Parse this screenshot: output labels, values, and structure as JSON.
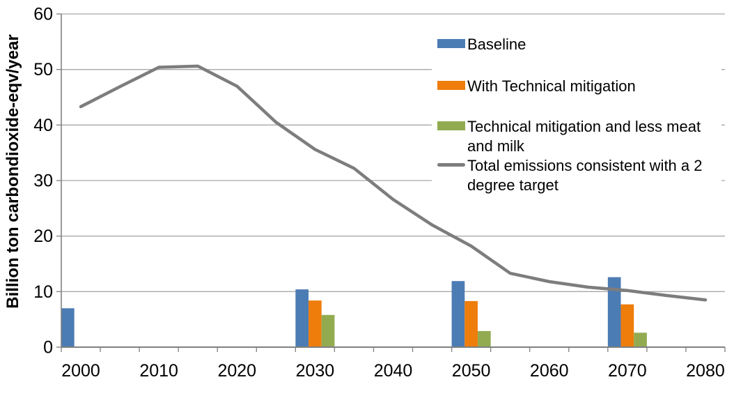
{
  "page": {
    "background": "#FFFFFF"
  },
  "chart_data": {
    "type": "combo-bar-line",
    "title": "",
    "xlabel": "",
    "ylabel": "Billion ton carbondioxide-eqv/year",
    "ylim": [
      0,
      60
    ],
    "y_tick_step": 10,
    "y_tick_labels": [
      "0",
      "10",
      "20",
      "30",
      "40",
      "50",
      "60"
    ],
    "x_categories": [
      2000,
      2005,
      2010,
      2015,
      2020,
      2025,
      2030,
      2035,
      2040,
      2045,
      2050,
      2055,
      2060,
      2065,
      2070,
      2075,
      2080
    ],
    "x_tick_labels": [
      "2000",
      "2010",
      "2020",
      "2030",
      "2040",
      "2050",
      "2060",
      "2070",
      "2080"
    ],
    "grid": "horizontal-only",
    "legend_position": "inside-top-right",
    "axis_color": "#808080",
    "gridline_color": "#A8A8A8",
    "text_color": "#000000",
    "bar_series": [
      {
        "name": "Baseline",
        "color": "#4C7CB4",
        "points": [
          {
            "x": 2000,
            "y": 7.0
          },
          {
            "x": 2030,
            "y": 10.4
          },
          {
            "x": 2050,
            "y": 11.9
          },
          {
            "x": 2070,
            "y": 12.6
          }
        ]
      },
      {
        "name": "With Technical mitigation",
        "color": "#EE7D0C",
        "points": [
          {
            "x": 2030,
            "y": 8.4
          },
          {
            "x": 2050,
            "y": 8.3
          },
          {
            "x": 2070,
            "y": 7.7
          }
        ]
      },
      {
        "name": "Technical mitigation and less meat and milk",
        "color": "#93AB50",
        "points": [
          {
            "x": 2030,
            "y": 5.8
          },
          {
            "x": 2050,
            "y": 2.9
          },
          {
            "x": 2070,
            "y": 2.6
          }
        ]
      }
    ],
    "line_series": [
      {
        "name": "Total emissions consistent with a 2 degree target",
        "color": "#7D7D7D",
        "x": [
          2000,
          2005,
          2010,
          2015,
          2020,
          2025,
          2030,
          2035,
          2040,
          2045,
          2050,
          2055,
          2060,
          2065,
          2070,
          2075,
          2080
        ],
        "y": [
          43.3,
          46.9,
          50.4,
          50.6,
          47.0,
          40.5,
          35.6,
          32.2,
          26.6,
          22.0,
          18.2,
          13.3,
          11.8,
          10.8,
          10.2,
          9.3,
          8.5
        ]
      }
    ]
  }
}
